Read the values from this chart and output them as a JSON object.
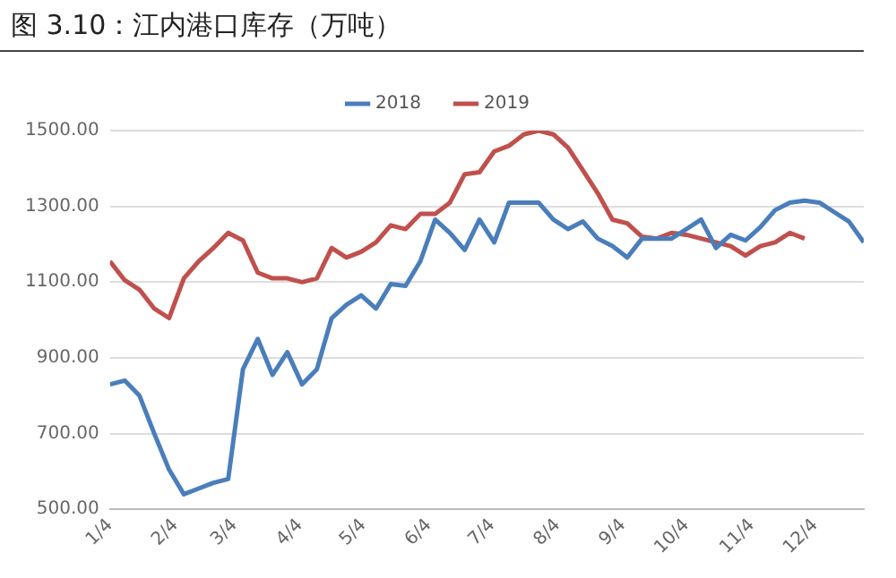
{
  "chart_data": {
    "type": "line",
    "title": "图 3.10：江内港口库存（万吨）",
    "x": [
      "--01-04",
      "--01-11",
      "--01-18",
      "--01-25",
      "--02-01",
      "--02-08",
      "--02-15",
      "--02-22",
      "--03-01",
      "--03-08",
      "--03-15",
      "--03-22",
      "--03-29",
      "--04-05",
      "--04-12",
      "--04-19",
      "--04-26",
      "--05-03",
      "--05-10",
      "--05-17",
      "--05-24",
      "--05-31",
      "--06-07",
      "--06-14",
      "--06-21",
      "--06-28",
      "--07-05",
      "--07-12",
      "--07-19",
      "--07-26",
      "--08-02",
      "--08-09",
      "--08-16",
      "--08-23",
      "--08-30",
      "--09-06",
      "--09-13",
      "--09-20",
      "--09-27",
      "--10-04",
      "--10-11",
      "--10-18",
      "--10-25",
      "--11-01",
      "--11-08",
      "--11-15",
      "--11-22",
      "--11-29",
      "--12-06",
      "--12-13",
      "--12-20",
      "--12-27"
    ],
    "series": [
      {
        "name": "2018",
        "color": "#4a7ebb",
        "values": [
          830,
          840,
          800,
          700,
          605,
          540,
          555,
          570,
          580,
          870,
          950,
          855,
          915,
          830,
          870,
          1005,
          1040,
          1065,
          1030,
          1095,
          1090,
          1155,
          1265,
          1230,
          1185,
          1265,
          1205,
          1310,
          1310,
          1310,
          1265,
          1240,
          1260,
          1215,
          1195,
          1165,
          1215,
          1215,
          1215,
          1240,
          1265,
          1190,
          1225,
          1210,
          1245,
          1290,
          1310,
          1315,
          1310,
          1285,
          1260,
          1205
        ]
      },
      {
        "name": "2019",
        "color": "#c0504d",
        "values": [
          1155,
          1105,
          1080,
          1030,
          1005,
          1110,
          1155,
          1190,
          1230,
          1210,
          1125,
          1110,
          1110,
          1100,
          1110,
          1190,
          1165,
          1180,
          1205,
          1250,
          1240,
          1280,
          1280,
          1310,
          1385,
          1390,
          1445,
          1460,
          1490,
          1500,
          1490,
          1455,
          1395,
          1335,
          1265,
          1255,
          1220,
          1215,
          1230,
          1225,
          1215,
          1205,
          1195,
          1170,
          1195,
          1205,
          1230,
          1215,
          null,
          null,
          null,
          null
        ]
      }
    ],
    "xlim": [
      "--01-04",
      "--12-27"
    ],
    "xticks": [
      {
        "value": "--01-04",
        "label": "1/4"
      },
      {
        "value": "--02-04",
        "label": "2/4"
      },
      {
        "value": "--03-04",
        "label": "3/4"
      },
      {
        "value": "--04-04",
        "label": "4/4"
      },
      {
        "value": "--05-04",
        "label": "5/4"
      },
      {
        "value": "--06-04",
        "label": "6/4"
      },
      {
        "value": "--07-04",
        "label": "7/4"
      },
      {
        "value": "--08-04",
        "label": "8/4"
      },
      {
        "value": "--09-04",
        "label": "9/4"
      },
      {
        "value": "--10-04",
        "label": "10/4"
      },
      {
        "value": "--11-04",
        "label": "11/4"
      },
      {
        "value": "--12-04",
        "label": "12/4"
      }
    ],
    "ylim": [
      500,
      1500
    ],
    "yticks": [
      {
        "value": 500,
        "label": "500.00"
      },
      {
        "value": 700,
        "label": "700.00"
      },
      {
        "value": 900,
        "label": "900.00"
      },
      {
        "value": 1100,
        "label": "1100.00"
      },
      {
        "value": 1300,
        "label": "1300.00"
      },
      {
        "value": 1500,
        "label": "1500.00"
      }
    ],
    "grid": "y",
    "legend": "top",
    "marker": "none",
    "line_style": "solid"
  }
}
